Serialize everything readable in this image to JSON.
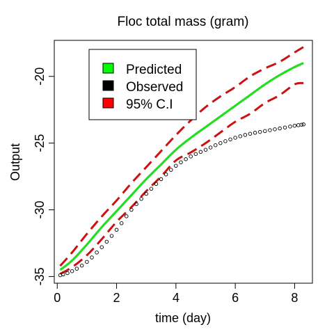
{
  "chart_data": {
    "type": "line",
    "title": "Floc total mass (gram)",
    "xlabel": "time (day)",
    "ylabel": "Output",
    "xlim": [
      -0.1,
      8.6
    ],
    "ylim": [
      -35.5,
      -17.3
    ],
    "xticks": [
      0,
      2,
      4,
      6,
      8
    ],
    "xtick_labels": [
      "0",
      "2",
      "4",
      "6",
      "8"
    ],
    "yticks": [
      -35,
      -30,
      -25,
      -20
    ],
    "ytick_labels": [
      "-35",
      "-30",
      "-25",
      "-20"
    ],
    "grid": false,
    "legend_position": "top-left",
    "legend": [
      {
        "label": "Predicted",
        "color": "#00ff00"
      },
      {
        "label": "Observed",
        "color": "#000000"
      },
      {
        "label": "95% C.I",
        "color": "#ff0000"
      }
    ],
    "series": [
      {
        "name": "Predicted",
        "style": "solid",
        "color": "#22dd22",
        "x": [
          0.1,
          0.5,
          1.0,
          1.5,
          2.0,
          2.5,
          3.0,
          3.5,
          4.0,
          4.5,
          5.0,
          5.5,
          6.0,
          6.5,
          7.0,
          7.5,
          8.0,
          8.3
        ],
        "y": [
          -34.5,
          -33.8,
          -32.6,
          -31.3,
          -30.1,
          -28.9,
          -27.7,
          -26.6,
          -25.5,
          -24.6,
          -23.8,
          -23.0,
          -22.2,
          -21.4,
          -20.6,
          -19.9,
          -19.3,
          -19.0
        ]
      },
      {
        "name": "Observed",
        "style": "points",
        "color": "#000000",
        "x": [
          0.1,
          0.5,
          1.0,
          1.5,
          2.0,
          2.5,
          3.0,
          3.5,
          4.0,
          4.5,
          5.0,
          5.5,
          6.0,
          6.5,
          7.0,
          7.5,
          8.0,
          8.3
        ],
        "y": [
          -34.9,
          -34.6,
          -33.9,
          -32.8,
          -31.5,
          -30.0,
          -28.8,
          -27.7,
          -26.7,
          -26.0,
          -25.5,
          -25.0,
          -24.6,
          -24.3,
          -24.1,
          -23.9,
          -23.7,
          -23.6
        ]
      },
      {
        "name": "95% C.I",
        "style": "dashed",
        "color": "#cc1111",
        "x": [
          0.1,
          0.5,
          1.0,
          1.5,
          2.0,
          2.5,
          3.0,
          3.5,
          4.0,
          4.5,
          5.0,
          5.5,
          6.0,
          6.5,
          7.0,
          7.5,
          8.0,
          8.3
        ],
        "y": [
          -34.2,
          -33.2,
          -31.8,
          -30.5,
          -29.3,
          -28.0,
          -26.8,
          -25.6,
          -24.4,
          -23.3,
          -22.3,
          -21.5,
          -20.8,
          -20.0,
          -19.4,
          -18.9,
          -18.2,
          -17.8
        ]
      },
      {
        "name": "95% C.I",
        "style": "dashed",
        "color": "#cc1111",
        "x": [
          0.1,
          0.5,
          1.0,
          1.5,
          2.0,
          2.5,
          3.0,
          3.5,
          4.0,
          4.5,
          5.0,
          5.5,
          6.0,
          6.5,
          7.0,
          7.5,
          8.0,
          8.3
        ],
        "y": [
          -34.8,
          -34.3,
          -33.4,
          -32.2,
          -30.9,
          -29.8,
          -28.6,
          -27.5,
          -26.3,
          -25.7,
          -25.0,
          -24.2,
          -23.4,
          -22.8,
          -22.0,
          -21.4,
          -20.6,
          -20.5
        ]
      }
    ]
  }
}
